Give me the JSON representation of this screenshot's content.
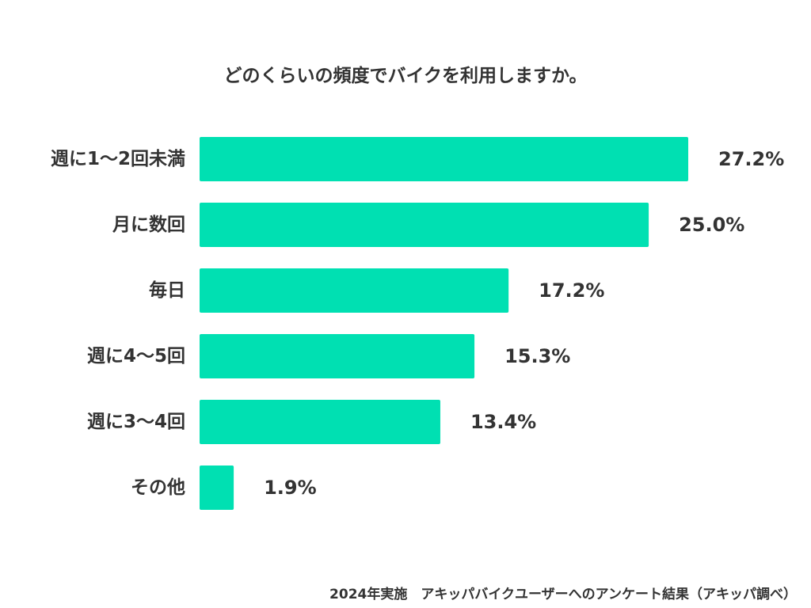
{
  "chart_data": {
    "type": "bar",
    "orientation": "horizontal",
    "title": "どのくらいの頻度でバイクを利用しますか。",
    "categories": [
      "週に1〜2回未満",
      "月に数回",
      "毎日",
      "週に4〜5回",
      "週に3〜4回",
      "その他"
    ],
    "values": [
      27.2,
      25.0,
      17.2,
      15.3,
      13.4,
      1.9
    ],
    "value_labels": [
      "27.2%",
      "25.0%",
      "17.2%",
      "15.3%",
      "13.4%",
      "1.9%"
    ],
    "unit": "%",
    "xlim": [
      0,
      27.2
    ],
    "grid": false,
    "legend": "none",
    "bar_color": "#00E0B2",
    "source_note": "2024年実施　アキッパバイクユーザーへのアンケート結果（アキッパ調べ）"
  }
}
